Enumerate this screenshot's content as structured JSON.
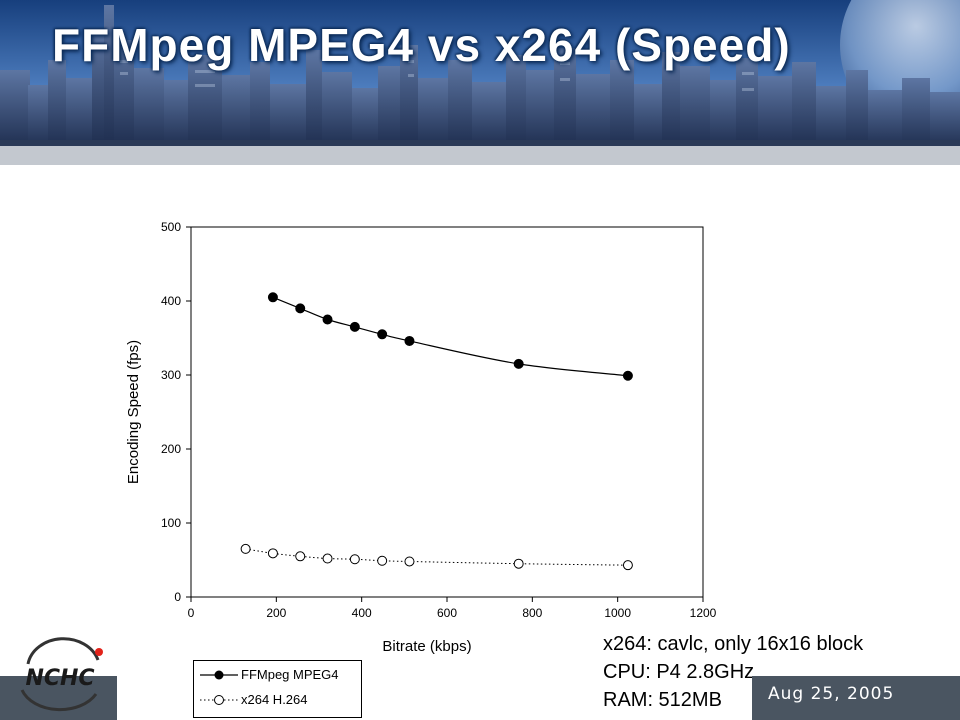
{
  "slide": {
    "title": "FFMpeg MPEG4 vs x264 (Speed)",
    "date": "Aug 25, 2005",
    "logo_text": "NCHC"
  },
  "notes": [
    "x264: cavlc, only 16x16 block",
    "CPU: P4 2.8GHz",
    "RAM: 512MB"
  ],
  "colors": {
    "banner_sky_top": "#1d4f96",
    "banner_sky_bottom": "#8fb3e0",
    "footer_bar": "#4a5561",
    "accent_red": "#e2231a"
  },
  "chart_data": {
    "type": "line",
    "xlabel": "Bitrate (kbps)",
    "ylabel": "Encoding Speed (fps)",
    "xlim": [
      0,
      1200
    ],
    "ylim": [
      0,
      500
    ],
    "x_ticks": [
      "0",
      "200",
      "400",
      "600",
      "800",
      "1000",
      "1200"
    ],
    "y_ticks": [
      "0",
      "100",
      "200",
      "300",
      "400",
      "500"
    ],
    "grid": false,
    "legend_position": "bottom-left",
    "series": [
      {
        "name": "FFMpeg MPEG4",
        "marker": "filled-circle",
        "line": "solid",
        "x": [
          192,
          256,
          320,
          384,
          448,
          512,
          768,
          1024
        ],
        "y": [
          405,
          390,
          375,
          365,
          355,
          346,
          315,
          299
        ]
      },
      {
        "name": "x264 H.264",
        "marker": "open-circle",
        "line": "dotted",
        "x": [
          128,
          192,
          256,
          320,
          384,
          448,
          512,
          768,
          1024
        ],
        "y": [
          65,
          59,
          55,
          52,
          51,
          49,
          48,
          45,
          43
        ]
      }
    ]
  }
}
